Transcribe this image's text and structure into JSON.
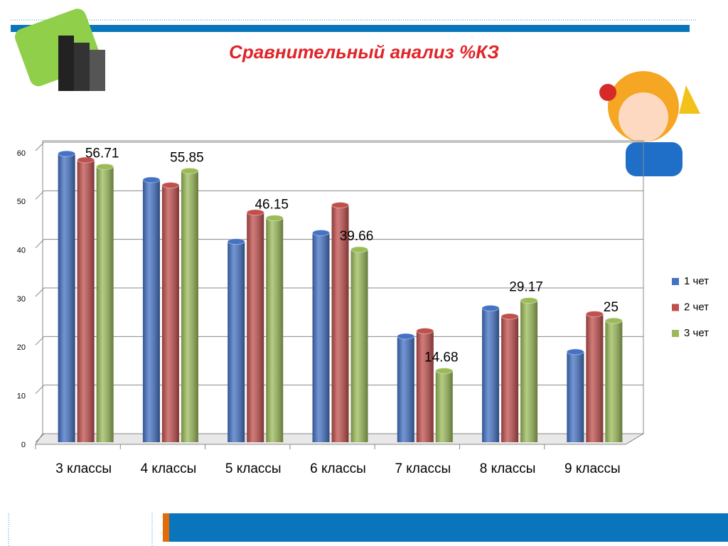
{
  "chart_data": {
    "type": "bar",
    "title": "Сравнительный анализ %КЗ",
    "categories": [
      "3 классы",
      "4 классы",
      "5 классы",
      "6 классы",
      "7 классы",
      "8 классы",
      "9 классы"
    ],
    "series": [
      {
        "name": "1 чет",
        "color": "#4472c4",
        "values": [
          59.4,
          54,
          41.3,
          43.1,
          21.8,
          27.6,
          18.6
        ]
      },
      {
        "name": "2 чет",
        "color": "#c0504d",
        "values": [
          58.1,
          52.9,
          47.3,
          48.8,
          22.9,
          25.9,
          26.4
        ]
      },
      {
        "name": "3 чет",
        "color": "#9bbb59",
        "values": [
          56.71,
          55.85,
          46.15,
          39.66,
          14.68,
          29.17,
          25
        ]
      }
    ],
    "ylim": [
      0,
      60
    ],
    "yticks": [
      0,
      10,
      20,
      30,
      40,
      50,
      60
    ],
    "grid": true,
    "legend": "right"
  }
}
